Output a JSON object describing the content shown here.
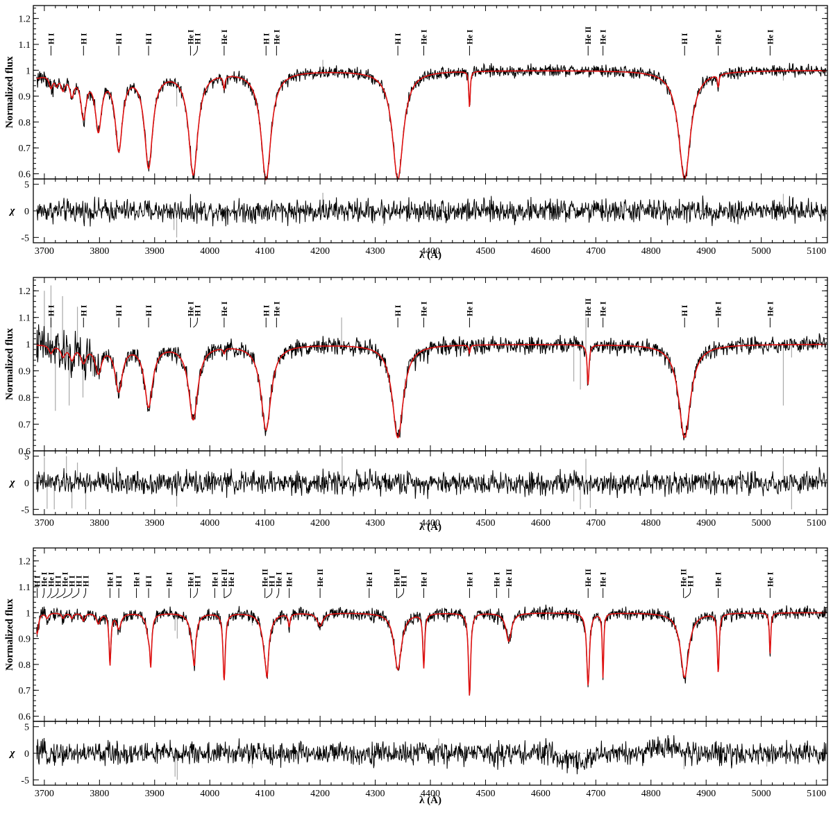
{
  "figure": {
    "panels": [
      {
        "flux_ylabel": "Normalized flux",
        "resid_ylabel": "χ",
        "xlabel": "λ (Å)",
        "xlim": [
          3680,
          5120
        ],
        "flux_ylim": [
          0.58,
          1.25
        ],
        "resid_ylim": [
          -6,
          6
        ],
        "xticks": [
          "3700",
          "3800",
          "3900",
          "4000",
          "4100",
          "4200",
          "4300",
          "4400",
          "4500",
          "4600",
          "4700",
          "4800",
          "4900",
          "5000",
          "5100"
        ],
        "flux_yticks": [
          "0.6",
          "0.7",
          "0.8",
          "0.9",
          "1",
          "1.1",
          "1.2"
        ],
        "resid_yticks": [
          "5",
          "0",
          "-5"
        ],
        "lines": [
          {
            "x": 3712,
            "label": "H I"
          },
          {
            "x": 3771,
            "label": "H I"
          },
          {
            "x": 3835,
            "label": "H I"
          },
          {
            "x": 3889,
            "label": "H I"
          },
          {
            "x": 3965,
            "label": "He I"
          },
          {
            "x": 3970,
            "label": "H I"
          },
          {
            "x": 4026,
            "label": "He I"
          },
          {
            "x": 4102,
            "label": "H I"
          },
          {
            "x": 4121,
            "label": "He I"
          },
          {
            "x": 4341,
            "label": "H I"
          },
          {
            "x": 4388,
            "label": "He I"
          },
          {
            "x": 4471,
            "label": "He I"
          },
          {
            "x": 4686,
            "label": "He II"
          },
          {
            "x": 4713,
            "label": "He I"
          },
          {
            "x": 4861,
            "label": "H I"
          },
          {
            "x": 4922,
            "label": "He I"
          },
          {
            "x": 5016,
            "label": "He I"
          }
        ]
      },
      {
        "flux_ylabel": "Normalized flux",
        "resid_ylabel": "χ",
        "xlabel": "λ (Å)",
        "xlim": [
          3680,
          5120
        ],
        "flux_ylim": [
          0.6,
          1.25
        ],
        "resid_ylim": [
          -6,
          6
        ],
        "xticks": [
          "3700",
          "3800",
          "3900",
          "4000",
          "4100",
          "4200",
          "4300",
          "4400",
          "4500",
          "4600",
          "4700",
          "4800",
          "4900",
          "5000",
          "5100"
        ],
        "flux_yticks": [
          "0.6",
          "0.7",
          "0.8",
          "0.9",
          "1",
          "1.1",
          "1.2"
        ],
        "resid_yticks": [
          "5",
          "0",
          "-5"
        ],
        "lines": [
          {
            "x": 3712,
            "label": "H I"
          },
          {
            "x": 3771,
            "label": "H I"
          },
          {
            "x": 3835,
            "label": "H I"
          },
          {
            "x": 3889,
            "label": "H I"
          },
          {
            "x": 3965,
            "label": "He I"
          },
          {
            "x": 3970,
            "label": "H I"
          },
          {
            "x": 4026,
            "label": "He I"
          },
          {
            "x": 4102,
            "label": "H I"
          },
          {
            "x": 4121,
            "label": "He I"
          },
          {
            "x": 4341,
            "label": "H I"
          },
          {
            "x": 4388,
            "label": "He I"
          },
          {
            "x": 4471,
            "label": "He I"
          },
          {
            "x": 4686,
            "label": "He II"
          },
          {
            "x": 4713,
            "label": "He I"
          },
          {
            "x": 4861,
            "label": "H I"
          },
          {
            "x": 4922,
            "label": "He I"
          },
          {
            "x": 5016,
            "label": "He I"
          }
        ]
      },
      {
        "flux_ylabel": "Normalized flux",
        "resid_ylabel": "χ",
        "xlabel": "λ (Å)",
        "xlim": [
          3680,
          5120
        ],
        "flux_ylim": [
          0.58,
          1.25
        ],
        "resid_ylim": [
          -6,
          6
        ],
        "xticks": [
          "3700",
          "3800",
          "3900",
          "4000",
          "4100",
          "4200",
          "4300",
          "4400",
          "4500",
          "4600",
          "4700",
          "4800",
          "4900",
          "5000",
          "5100"
        ],
        "flux_yticks": [
          "0.6",
          "0.7",
          "0.8",
          "0.9",
          "1",
          "1.1",
          "1.2"
        ],
        "resid_yticks": [
          "5",
          "0",
          "-5"
        ],
        "lines": [
          {
            "x": 3687,
            "label": "H I"
          },
          {
            "x": 3697,
            "label": "He I"
          },
          {
            "x": 3705,
            "label": "He I"
          },
          {
            "x": 3712,
            "label": "H I"
          },
          {
            "x": 3722,
            "label": "He I"
          },
          {
            "x": 3734,
            "label": "H I"
          },
          {
            "x": 3750,
            "label": "H I"
          },
          {
            "x": 3771,
            "label": "H I"
          },
          {
            "x": 3819,
            "label": "He I"
          },
          {
            "x": 3835,
            "label": "H I"
          },
          {
            "x": 3867,
            "label": "He I"
          },
          {
            "x": 3889,
            "label": "H I"
          },
          {
            "x": 3926,
            "label": "He I"
          },
          {
            "x": 3965,
            "label": "He I"
          },
          {
            "x": 3970,
            "label": "H I"
          },
          {
            "x": 4009,
            "label": "He I"
          },
          {
            "x": 4026,
            "label": "He II"
          },
          {
            "x": 4026,
            "label": "He I"
          },
          {
            "x": 4100,
            "label": "He II"
          },
          {
            "x": 4102,
            "label": "H I"
          },
          {
            "x": 4121,
            "label": "He I"
          },
          {
            "x": 4144,
            "label": "He I"
          },
          {
            "x": 4200,
            "label": "He II"
          },
          {
            "x": 4289,
            "label": "He I"
          },
          {
            "x": 4339,
            "label": "He II"
          },
          {
            "x": 4341,
            "label": "H I"
          },
          {
            "x": 4388,
            "label": "He I"
          },
          {
            "x": 4471,
            "label": "He I"
          },
          {
            "x": 4542,
            "label": "He II"
          },
          {
            "x": 4520,
            "label": "He I"
          },
          {
            "x": 4686,
            "label": "He II"
          },
          {
            "x": 4713,
            "label": "He I"
          },
          {
            "x": 4859,
            "label": "He II"
          },
          {
            "x": 4861,
            "label": "H I"
          },
          {
            "x": 4922,
            "label": "He I"
          },
          {
            "x": 5016,
            "label": "He I"
          }
        ]
      }
    ]
  },
  "chart_data": [
    {
      "type": "line",
      "xlabel": "λ (Å)",
      "ylabel": "Normalized flux",
      "xlim": [
        3680,
        5120
      ],
      "ylim": [
        0.58,
        1.25
      ],
      "lines": [
        {
          "x": 3712,
          "depth": 0.05,
          "width": 4
        },
        {
          "x": 3722,
          "depth": 0.04,
          "width": 4
        },
        {
          "x": 3734,
          "depth": 0.06,
          "width": 5
        },
        {
          "x": 3750,
          "depth": 0.08,
          "width": 5
        },
        {
          "x": 3771,
          "depth": 0.17,
          "width": 6
        },
        {
          "x": 3798,
          "depth": 0.22,
          "width": 7
        },
        {
          "x": 3835,
          "depth": 0.3,
          "width": 8
        },
        {
          "x": 3889,
          "depth": 0.37,
          "width": 9
        },
        {
          "x": 3970,
          "depth": 0.4,
          "width": 10
        },
        {
          "x": 4026,
          "depth": 0.05,
          "width": 2
        },
        {
          "x": 4102,
          "depth": 0.42,
          "width": 11
        },
        {
          "x": 4341,
          "depth": 0.42,
          "width": 12
        },
        {
          "x": 4471,
          "depth": 0.14,
          "width": 1.5
        },
        {
          "x": 4861,
          "depth": 0.42,
          "width": 13
        },
        {
          "x": 4922,
          "depth": 0.05,
          "width": 1.5
        }
      ]
    },
    {
      "type": "line",
      "xlabel": "λ (Å)",
      "ylabel": "Normalized flux",
      "xlim": [
        3680,
        5120
      ],
      "ylim": [
        0.6,
        1.25
      ],
      "lines": [
        {
          "x": 3712,
          "depth": 0.03,
          "width": 4
        },
        {
          "x": 3734,
          "depth": 0.04,
          "width": 5
        },
        {
          "x": 3750,
          "depth": 0.05,
          "width": 5
        },
        {
          "x": 3771,
          "depth": 0.06,
          "width": 6
        },
        {
          "x": 3798,
          "depth": 0.1,
          "width": 7
        },
        {
          "x": 3835,
          "depth": 0.17,
          "width": 8
        },
        {
          "x": 3889,
          "depth": 0.23,
          "width": 9
        },
        {
          "x": 3970,
          "depth": 0.28,
          "width": 10
        },
        {
          "x": 4026,
          "depth": 0.02,
          "width": 2
        },
        {
          "x": 4102,
          "depth": 0.32,
          "width": 11
        },
        {
          "x": 4341,
          "depth": 0.35,
          "width": 12
        },
        {
          "x": 4471,
          "depth": 0.03,
          "width": 1.5
        },
        {
          "x": 4686,
          "depth": 0.15,
          "width": 2
        },
        {
          "x": 4861,
          "depth": 0.35,
          "width": 13
        }
      ]
    },
    {
      "type": "line",
      "xlabel": "λ (Å)",
      "ylabel": "Normalized flux",
      "xlim": [
        3680,
        5120
      ],
      "ylim": [
        0.58,
        1.25
      ],
      "lines": [
        {
          "x": 3687,
          "depth": 0.08,
          "width": 3
        },
        {
          "x": 3705,
          "depth": 0.02,
          "width": 3
        },
        {
          "x": 3734,
          "depth": 0.02,
          "width": 3
        },
        {
          "x": 3750,
          "depth": 0.02,
          "width": 3
        },
        {
          "x": 3771,
          "depth": 0.03,
          "width": 3
        },
        {
          "x": 3798,
          "depth": 0.04,
          "width": 4
        },
        {
          "x": 3819,
          "depth": 0.2,
          "width": 2
        },
        {
          "x": 3835,
          "depth": 0.06,
          "width": 5
        },
        {
          "x": 3889,
          "depth": 0.08,
          "width": 5
        },
        {
          "x": 3893,
          "depth": 0.17,
          "width": 2
        },
        {
          "x": 3970,
          "depth": 0.13,
          "width": 6
        },
        {
          "x": 3972,
          "depth": 0.1,
          "width": 2
        },
        {
          "x": 4026,
          "depth": 0.26,
          "width": 2.5
        },
        {
          "x": 4102,
          "depth": 0.18,
          "width": 7
        },
        {
          "x": 4104,
          "depth": 0.1,
          "width": 2
        },
        {
          "x": 4144,
          "depth": 0.05,
          "width": 2
        },
        {
          "x": 4200,
          "depth": 0.05,
          "width": 6
        },
        {
          "x": 4341,
          "depth": 0.22,
          "width": 8
        },
        {
          "x": 4388,
          "depth": 0.21,
          "width": 2
        },
        {
          "x": 4471,
          "depth": 0.32,
          "width": 2.5
        },
        {
          "x": 4542,
          "depth": 0.11,
          "width": 6
        },
        {
          "x": 4686,
          "depth": 0.28,
          "width": 3
        },
        {
          "x": 4713,
          "depth": 0.25,
          "width": 1.5
        },
        {
          "x": 4861,
          "depth": 0.25,
          "width": 9
        },
        {
          "x": 4922,
          "depth": 0.23,
          "width": 2
        },
        {
          "x": 5016,
          "depth": 0.16,
          "width": 1.5
        }
      ]
    }
  ]
}
